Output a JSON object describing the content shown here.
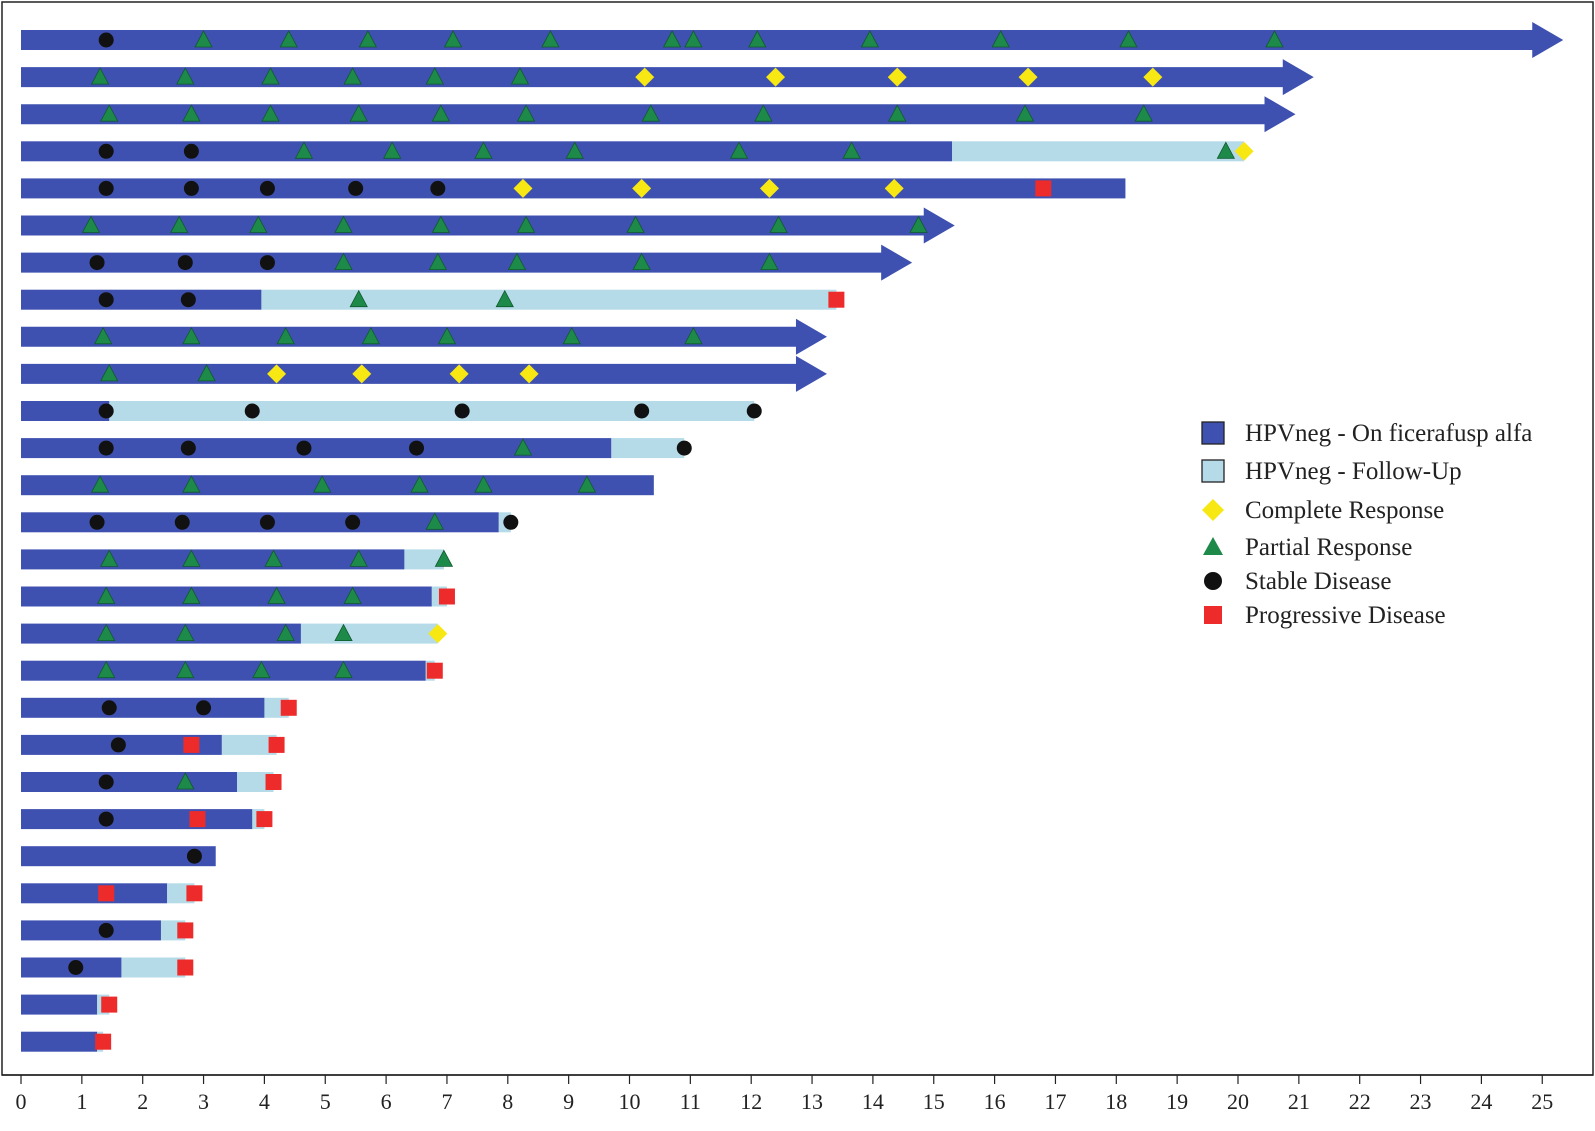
{
  "chart_data": {
    "type": "swimmer",
    "title": "",
    "xlabel": "",
    "ylabel": "",
    "xlim": [
      0,
      25.8
    ],
    "xticks": [
      0,
      1,
      2,
      3,
      4,
      5,
      6,
      7,
      8,
      9,
      10,
      11,
      12,
      13,
      14,
      15,
      16,
      17,
      18,
      19,
      20,
      21,
      22,
      23,
      24,
      25
    ],
    "grid": false,
    "legend_position": "right",
    "colors": {
      "on_treatment": "#3f51b0",
      "follow_up": "#b5dbe8",
      "complete_response": "#f7e814",
      "partial_response": "#1e8a4a",
      "stable_disease": "#111111",
      "progressive_disease": "#ee2b2b"
    },
    "legend": [
      {
        "key": "on_treatment",
        "shape": "box",
        "label": "HPVneg - On ficerafusp alfa"
      },
      {
        "key": "follow_up",
        "shape": "box",
        "label": "HPVneg - Follow-Up"
      },
      {
        "key": "complete_response",
        "shape": "diamond",
        "label": "Complete Response"
      },
      {
        "key": "partial_response",
        "shape": "triangle",
        "label": "Partial Response"
      },
      {
        "key": "stable_disease",
        "shape": "circle",
        "label": "Stable Disease"
      },
      {
        "key": "progressive_disease",
        "shape": "square",
        "label": "Progressive Disease"
      }
    ],
    "patients": [
      {
        "on": 25.0,
        "ongoing": true,
        "events": [
          [
            "SD",
            1.4
          ],
          [
            "PR",
            3.0
          ],
          [
            "PR",
            4.4
          ],
          [
            "PR",
            5.7
          ],
          [
            "PR",
            7.1
          ],
          [
            "PR",
            8.7
          ],
          [
            "PR",
            10.7
          ],
          [
            "PR",
            11.05
          ],
          [
            "PR",
            12.1
          ],
          [
            "PR",
            13.95
          ],
          [
            "PR",
            16.1
          ],
          [
            "PR",
            18.2
          ],
          [
            "PR",
            20.6
          ]
        ]
      },
      {
        "on": 20.9,
        "ongoing": true,
        "events": [
          [
            "PR",
            1.3
          ],
          [
            "PR",
            2.7
          ],
          [
            "PR",
            4.1
          ],
          [
            "PR",
            5.45
          ],
          [
            "PR",
            6.8
          ],
          [
            "PR",
            8.2
          ],
          [
            "CR",
            10.25
          ],
          [
            "CR",
            12.4
          ],
          [
            "CR",
            14.4
          ],
          [
            "CR",
            16.55
          ],
          [
            "CR",
            18.6
          ]
        ]
      },
      {
        "on": 20.6,
        "ongoing": true,
        "events": [
          [
            "PR",
            1.45
          ],
          [
            "PR",
            2.8
          ],
          [
            "PR",
            4.1
          ],
          [
            "PR",
            5.55
          ],
          [
            "PR",
            6.9
          ],
          [
            "PR",
            8.3
          ],
          [
            "PR",
            10.35
          ],
          [
            "PR",
            12.2
          ],
          [
            "PR",
            14.4
          ],
          [
            "PR",
            16.5
          ],
          [
            "PR",
            18.45
          ]
        ]
      },
      {
        "on": 15.3,
        "fu": 20.1,
        "events": [
          [
            "SD",
            1.4
          ],
          [
            "SD",
            2.8
          ],
          [
            "PR",
            4.65
          ],
          [
            "PR",
            6.1
          ],
          [
            "PR",
            7.6
          ],
          [
            "PR",
            9.1
          ],
          [
            "PR",
            11.8
          ],
          [
            "PR",
            13.65
          ],
          [
            "PR",
            19.8
          ],
          [
            "CR",
            20.1
          ]
        ]
      },
      {
        "on": 18.15,
        "events": [
          [
            "SD",
            1.4
          ],
          [
            "SD",
            2.8
          ],
          [
            "SD",
            4.05
          ],
          [
            "SD",
            5.5
          ],
          [
            "SD",
            6.85
          ],
          [
            "CR",
            8.25
          ],
          [
            "CR",
            10.2
          ],
          [
            "CR",
            12.3
          ],
          [
            "CR",
            14.35
          ],
          [
            "PD",
            16.8
          ]
        ]
      },
      {
        "on": 15.0,
        "ongoing": true,
        "events": [
          [
            "PR",
            1.15
          ],
          [
            "PR",
            2.6
          ],
          [
            "PR",
            3.9
          ],
          [
            "PR",
            5.3
          ],
          [
            "PR",
            6.9
          ],
          [
            "PR",
            8.3
          ],
          [
            "PR",
            10.1
          ],
          [
            "PR",
            12.45
          ],
          [
            "PR",
            14.75
          ]
        ]
      },
      {
        "on": 14.3,
        "ongoing": true,
        "events": [
          [
            "SD",
            1.25
          ],
          [
            "SD",
            2.7
          ],
          [
            "SD",
            4.05
          ],
          [
            "PR",
            5.3
          ],
          [
            "PR",
            6.85
          ],
          [
            "PR",
            8.15
          ],
          [
            "PR",
            10.2
          ],
          [
            "PR",
            12.3
          ]
        ]
      },
      {
        "on": 3.95,
        "fu": 13.4,
        "events": [
          [
            "SD",
            1.4
          ],
          [
            "SD",
            2.75
          ],
          [
            "PR",
            5.55
          ],
          [
            "PR",
            7.95
          ],
          [
            "PD",
            13.4
          ]
        ]
      },
      {
        "on": 12.9,
        "ongoing": true,
        "events": [
          [
            "PR",
            1.35
          ],
          [
            "PR",
            2.8
          ],
          [
            "PR",
            4.35
          ],
          [
            "PR",
            5.75
          ],
          [
            "PR",
            7.0
          ],
          [
            "PR",
            9.05
          ],
          [
            "PR",
            11.05
          ]
        ]
      },
      {
        "on": 12.9,
        "ongoing": true,
        "events": [
          [
            "PR",
            1.45
          ],
          [
            "PR",
            3.05
          ],
          [
            "CR",
            4.2
          ],
          [
            "CR",
            5.6
          ],
          [
            "CR",
            7.2
          ],
          [
            "CR",
            8.35
          ]
        ]
      },
      {
        "on": 1.45,
        "fu": 12.05,
        "events": [
          [
            "SD",
            1.4
          ],
          [
            "SD",
            3.8
          ],
          [
            "SD",
            7.25
          ],
          [
            "SD",
            10.2
          ],
          [
            "SD",
            12.05
          ]
        ]
      },
      {
        "on": 9.7,
        "fu": 10.9,
        "events": [
          [
            "SD",
            1.4
          ],
          [
            "SD",
            2.75
          ],
          [
            "SD",
            4.65
          ],
          [
            "SD",
            6.5
          ],
          [
            "PR",
            8.25
          ],
          [
            "SD",
            10.9
          ]
        ]
      },
      {
        "on": 10.4,
        "events": [
          [
            "PR",
            1.3
          ],
          [
            "PR",
            2.8
          ],
          [
            "PR",
            4.95
          ],
          [
            "PR",
            6.55
          ],
          [
            "PR",
            7.6
          ],
          [
            "PR",
            9.3
          ]
        ]
      },
      {
        "on": 7.85,
        "fu": 8.05,
        "events": [
          [
            "SD",
            1.25
          ],
          [
            "SD",
            2.65
          ],
          [
            "SD",
            4.05
          ],
          [
            "SD",
            5.45
          ],
          [
            "PR",
            6.8
          ],
          [
            "SD",
            8.05
          ]
        ]
      },
      {
        "on": 6.3,
        "fu": 6.95,
        "events": [
          [
            "PR",
            1.45
          ],
          [
            "PR",
            2.8
          ],
          [
            "PR",
            4.15
          ],
          [
            "PR",
            5.55
          ],
          [
            "PR",
            6.95
          ]
        ]
      },
      {
        "on": 6.75,
        "fu": 7.0,
        "events": [
          [
            "PR",
            1.4
          ],
          [
            "PR",
            2.8
          ],
          [
            "PR",
            4.2
          ],
          [
            "PR",
            5.45
          ],
          [
            "PD",
            7.0
          ]
        ]
      },
      {
        "on": 4.6,
        "fu": 6.85,
        "events": [
          [
            "PR",
            1.4
          ],
          [
            "PR",
            2.7
          ],
          [
            "PR",
            4.35
          ],
          [
            "PR",
            5.3
          ],
          [
            "CR",
            6.85
          ]
        ]
      },
      {
        "on": 6.65,
        "fu": 6.8,
        "events": [
          [
            "PR",
            1.4
          ],
          [
            "PR",
            2.7
          ],
          [
            "PR",
            3.95
          ],
          [
            "PR",
            5.3
          ],
          [
            "PD",
            6.8
          ]
        ]
      },
      {
        "on": 4.0,
        "fu": 4.4,
        "events": [
          [
            "SD",
            1.45
          ],
          [
            "SD",
            3.0
          ],
          [
            "PD",
            4.4
          ]
        ]
      },
      {
        "on": 3.3,
        "fu": 4.2,
        "events": [
          [
            "SD",
            1.6
          ],
          [
            "PD",
            2.8
          ],
          [
            "PD",
            4.2
          ]
        ]
      },
      {
        "on": 3.55,
        "fu": 4.15,
        "events": [
          [
            "SD",
            1.4
          ],
          [
            "PR",
            2.7
          ],
          [
            "PD",
            4.15
          ]
        ]
      },
      {
        "on": 3.8,
        "fu": 4.0,
        "events": [
          [
            "SD",
            1.4
          ],
          [
            "PD",
            2.9
          ],
          [
            "PD",
            4.0
          ]
        ]
      },
      {
        "on": 3.2,
        "events": [
          [
            "SD",
            2.85
          ]
        ]
      },
      {
        "on": 2.4,
        "fu": 2.85,
        "events": [
          [
            "PD",
            1.4
          ],
          [
            "PD",
            2.85
          ]
        ]
      },
      {
        "on": 2.3,
        "fu": 2.7,
        "events": [
          [
            "SD",
            1.4
          ],
          [
            "PD",
            2.7
          ]
        ]
      },
      {
        "on": 1.65,
        "fu": 2.7,
        "events": [
          [
            "SD",
            0.9
          ],
          [
            "PD",
            2.7
          ]
        ]
      },
      {
        "on": 1.25,
        "fu": 1.45,
        "events": [
          [
            "PD",
            1.45
          ]
        ]
      },
      {
        "on": 1.25,
        "fu": 1.35,
        "events": [
          [
            "PD",
            1.35
          ]
        ]
      }
    ]
  }
}
